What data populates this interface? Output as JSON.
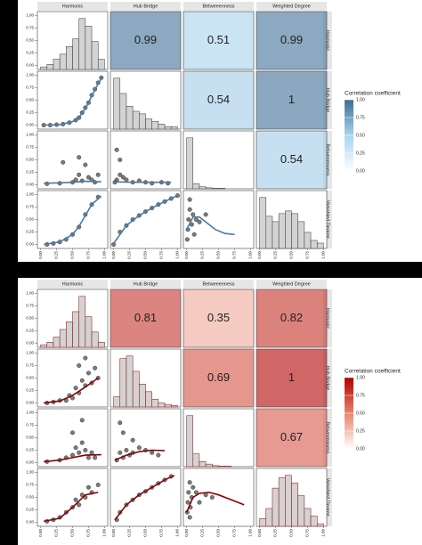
{
  "chart_data": [
    {
      "type": "pairs",
      "variables": [
        "Harmonic",
        "Hub Bridge",
        "Betweeenness",
        "Weighted Degree"
      ],
      "correlations": [
        0.99,
        0.51,
        0.99,
        0.54,
        1,
        0.54
      ],
      "histograms": [
        {
          "bins": [
            0,
            0.1,
            0.2,
            0.3,
            0.4,
            0.5,
            0.6,
            0.7,
            0.8,
            0.9,
            1
          ],
          "counts": [
            0.05,
            0.1,
            0.2,
            0.3,
            0.45,
            0.6,
            1.0,
            0.85,
            0.55,
            0.2
          ]
        },
        {
          "bins": [
            0,
            0.1,
            0.2,
            0.3,
            0.4,
            0.5,
            0.6,
            0.7,
            0.8,
            0.9,
            1
          ],
          "counts": [
            1.0,
            0.7,
            0.45,
            0.35,
            0.3,
            0.2,
            0.15,
            0.1,
            0.05,
            0.05
          ]
        },
        {
          "bins": [
            0,
            0.1,
            0.2,
            0.3,
            0.4,
            0.5,
            0.6,
            0.7,
            0.8,
            0.9,
            1
          ],
          "counts": [
            1.0,
            0.1,
            0.04,
            0.02,
            0.01,
            0.01,
            0,
            0,
            0,
            0
          ]
        },
        {
          "bins": [
            0,
            0.1,
            0.2,
            0.3,
            0.4,
            0.5,
            0.6,
            0.7,
            0.8,
            0.9,
            1
          ],
          "counts": [
            0.95,
            0.6,
            0.5,
            0.65,
            0.7,
            0.65,
            0.5,
            0.3,
            0.15,
            0.1
          ]
        }
      ],
      "scatter": [
        {
          "x": [
            0.05,
            0.15,
            0.25,
            0.35,
            0.45,
            0.55,
            0.6,
            0.65,
            0.7,
            0.75,
            0.8,
            0.85,
            0.9,
            0.95
          ],
          "y": [
            0,
            0,
            0.01,
            0.02,
            0.05,
            0.1,
            0.15,
            0.25,
            0.35,
            0.45,
            0.6,
            0.72,
            0.85,
            0.95
          ],
          "fit_x": [
            0.05,
            0.3,
            0.5,
            0.6,
            0.7,
            0.8,
            0.9,
            0.97
          ],
          "fit_y": [
            0,
            0.01,
            0.07,
            0.15,
            0.33,
            0.58,
            0.83,
            0.97
          ]
        },
        {
          "x": [
            0.1,
            0.3,
            0.5,
            0.55,
            0.6,
            0.65,
            0.7,
            0.75,
            0.8,
            0.85,
            0.35,
            0.6,
            0.9
          ],
          "y": [
            0.02,
            0.03,
            0.05,
            0.1,
            0.2,
            0.08,
            0.4,
            0.15,
            0.1,
            0.05,
            0.45,
            0.55,
            0.2
          ],
          "fit_x": [
            0.05,
            0.3,
            0.5,
            0.7,
            0.95
          ],
          "fit_y": [
            0.03,
            0.04,
            0.05,
            0.07,
            0.06
          ]
        },
        {
          "x": [
            0.02,
            0.05,
            0.1,
            0.15,
            0.2,
            0.3,
            0.4,
            0.5,
            0.6,
            0.75,
            0.85,
            0.1,
            0.05
          ],
          "y": [
            0.05,
            0.1,
            0.2,
            0.15,
            0.1,
            0.05,
            0.08,
            0.05,
            0.03,
            0.05,
            0.03,
            0.5,
            0.7
          ],
          "fit_x": [
            0.02,
            0.3,
            0.6,
            0.9
          ],
          "fit_y": [
            0.06,
            0.05,
            0.05,
            0.05
          ]
        },
        {
          "x": [
            0.1,
            0.2,
            0.3,
            0.4,
            0.5,
            0.6,
            0.7,
            0.8,
            0.9
          ],
          "y": [
            0,
            0.02,
            0.05,
            0.1,
            0.2,
            0.35,
            0.6,
            0.8,
            0.95
          ],
          "fit_x": [
            0.05,
            0.3,
            0.5,
            0.6,
            0.7,
            0.8,
            0.95
          ],
          "fit_y": [
            0,
            0.05,
            0.2,
            0.36,
            0.58,
            0.8,
            0.97
          ]
        },
        {
          "x": [
            0,
            0.1,
            0.2,
            0.3,
            0.4,
            0.5,
            0.6,
            0.7,
            0.8,
            0.9,
            1
          ],
          "y": [
            0,
            0.25,
            0.38,
            0.5,
            0.58,
            0.66,
            0.73,
            0.8,
            0.86,
            0.92,
            0.98
          ],
          "fit_x": [
            0,
            0.2,
            0.4,
            0.6,
            0.8,
            1
          ],
          "fit_y": [
            0.02,
            0.38,
            0.58,
            0.73,
            0.86,
            0.98
          ]
        },
        {
          "x": [
            0.01,
            0.02,
            0.03,
            0.05,
            0.05,
            0.08,
            0.1,
            0.12,
            0.15,
            0.2,
            0.3
          ],
          "y": [
            0.1,
            0.3,
            0.5,
            0.7,
            0.9,
            0.4,
            0.6,
            0.2,
            0.5,
            0.45,
            0.6
          ],
          "fit_x": [
            0,
            0.1,
            0.2,
            0.3,
            0.45,
            0.6,
            0.75
          ],
          "fit_y": [
            0.3,
            0.55,
            0.55,
            0.45,
            0.3,
            0.22,
            0.2
          ]
        }
      ],
      "xlim": [
        -0.05,
        1.05
      ],
      "xticks": [
        {
          "value": 0,
          "label": "0.00"
        },
        {
          "value": 0.25,
          "label": "0.25"
        },
        {
          "value": 0.5,
          "label": "0.50"
        },
        {
          "value": 0.75,
          "label": "0.75"
        },
        {
          "value": 1,
          "label": "1.00"
        }
      ],
      "ylim": [
        -0.08,
        1.08
      ],
      "yticks": [
        {
          "value": 0,
          "label": "0.00"
        },
        {
          "value": 0.25,
          "label": "0.25"
        },
        {
          "value": 0.5,
          "label": "0.50"
        },
        {
          "value": 0.75,
          "label": "0.75"
        },
        {
          "value": 1,
          "label": "1.00"
        }
      ],
      "legend": {
        "title": "Correlation coefficient",
        "colors": [
          "#ffffff",
          "#a8d4ee",
          "#3e6e96"
        ],
        "ticks": [
          {
            "value": 0,
            "label": "0.00"
          },
          {
            "value": 0.25,
            "label": "0.25"
          },
          {
            "value": 0.5,
            "label": "0.50"
          },
          {
            "value": 0.75,
            "label": "0.75"
          },
          {
            "value": 1,
            "label": "1.00"
          }
        ]
      },
      "color": "#222222",
      "fit_color": "#4a7aa5",
      "bar_fill": "#d3d3d3",
      "bar_stroke": "#333333"
    },
    {
      "type": "pairs",
      "variables": [
        "Harmonic",
        "Hub Bridge",
        "Betweeenness",
        "Weighted Degree"
      ],
      "correlations": [
        0.81,
        0.35,
        0.82,
        0.69,
        1,
        0.67
      ],
      "histograms": [
        {
          "bins": [
            0,
            0.1,
            0.2,
            0.3,
            0.4,
            0.5,
            0.6,
            0.7,
            0.8,
            0.9,
            1
          ],
          "counts": [
            0.05,
            0.1,
            0.2,
            0.35,
            0.5,
            0.7,
            1.0,
            0.6,
            0.3,
            0.1
          ]
        },
        {
          "bins": [
            0,
            0.1,
            0.2,
            0.3,
            0.4,
            0.5,
            0.6,
            0.7,
            0.8,
            0.9,
            1
          ],
          "counts": [
            0.2,
            0.95,
            1.0,
            0.7,
            0.45,
            0.3,
            0.15,
            0.08,
            0.05,
            0.03
          ]
        },
        {
          "bins": [
            0,
            0.1,
            0.2,
            0.3,
            0.4,
            0.5,
            0.6,
            0.7,
            0.8,
            0.9,
            1
          ],
          "counts": [
            1.0,
            0.25,
            0.1,
            0.05,
            0.02,
            0.01,
            0.01,
            0,
            0,
            0
          ]
        },
        {
          "bins": [
            0,
            0.1,
            0.2,
            0.3,
            0.4,
            0.5,
            0.6,
            0.7,
            0.8,
            0.9,
            1
          ],
          "counts": [
            0.15,
            0.35,
            0.75,
            0.95,
            1.0,
            0.85,
            0.6,
            0.35,
            0.2,
            0.05
          ]
        }
      ],
      "scatter": [
        {
          "x": [
            0.1,
            0.2,
            0.3,
            0.4,
            0.45,
            0.5,
            0.55,
            0.6,
            0.65,
            0.7,
            0.75,
            0.8,
            0.85,
            0.9,
            0.6,
            0.7
          ],
          "y": [
            0,
            0.02,
            0.05,
            0.05,
            0.15,
            0.1,
            0.3,
            0.2,
            0.45,
            0.35,
            0.6,
            0.4,
            0.7,
            0.5,
            0.75,
            0.9
          ],
          "fit_x": [
            0.05,
            0.3,
            0.5,
            0.7,
            0.9
          ],
          "fit_y": [
            0,
            0.04,
            0.15,
            0.32,
            0.5
          ]
        },
        {
          "x": [
            0.1,
            0.3,
            0.4,
            0.5,
            0.55,
            0.6,
            0.65,
            0.7,
            0.75,
            0.8,
            0.85,
            0.5,
            0.65
          ],
          "y": [
            0.02,
            0.05,
            0.1,
            0.15,
            0.3,
            0.2,
            0.4,
            0.25,
            0.1,
            0.2,
            0.1,
            0.6,
            0.85
          ],
          "fit_x": [
            0.05,
            0.3,
            0.5,
            0.7,
            0.95
          ],
          "fit_y": [
            0.02,
            0.05,
            0.1,
            0.15,
            0.16
          ]
        },
        {
          "x": [
            0.05,
            0.1,
            0.15,
            0.2,
            0.25,
            0.3,
            0.4,
            0.5,
            0.6,
            0.7,
            0.15,
            0.1,
            0.3
          ],
          "y": [
            0.05,
            0.2,
            0.1,
            0.25,
            0.15,
            0.2,
            0.3,
            0.25,
            0.2,
            0.15,
            0.6,
            0.8,
            0.45
          ],
          "fit_x": [
            0.02,
            0.2,
            0.4,
            0.6,
            0.8
          ],
          "fit_y": [
            0.05,
            0.15,
            0.22,
            0.25,
            0.24
          ]
        },
        {
          "x": [
            0.1,
            0.2,
            0.3,
            0.4,
            0.5,
            0.55,
            0.6,
            0.65,
            0.7,
            0.75,
            0.8,
            0.9
          ],
          "y": [
            0.02,
            0.05,
            0.1,
            0.2,
            0.3,
            0.45,
            0.35,
            0.55,
            0.5,
            0.7,
            0.6,
            0.75
          ],
          "fit_x": [
            0.05,
            0.3,
            0.5,
            0.7,
            0.9
          ],
          "fit_y": [
            0.02,
            0.08,
            0.3,
            0.55,
            0.6
          ]
        },
        {
          "x": [
            0.05,
            0.1,
            0.2,
            0.3,
            0.4,
            0.5,
            0.6,
            0.7,
            0.8,
            0.9
          ],
          "y": [
            0.05,
            0.2,
            0.35,
            0.45,
            0.55,
            0.62,
            0.7,
            0.78,
            0.85,
            0.92
          ],
          "fit_x": [
            0.02,
            0.2,
            0.4,
            0.6,
            0.8,
            0.95
          ],
          "fit_y": [
            0.05,
            0.35,
            0.55,
            0.7,
            0.85,
            0.94
          ]
        },
        {
          "x": [
            0.01,
            0.02,
            0.03,
            0.05,
            0.06,
            0.08,
            0.1,
            0.15,
            0.2,
            0.3,
            0.4,
            0.05
          ],
          "y": [
            0.2,
            0.4,
            0.6,
            0.8,
            0.3,
            0.5,
            0.7,
            0.6,
            0.4,
            0.55,
            0.5,
            0.1
          ],
          "fit_x": [
            0,
            0.1,
            0.2,
            0.35,
            0.5,
            0.7,
            0.9
          ],
          "fit_y": [
            0.2,
            0.5,
            0.58,
            0.6,
            0.55,
            0.45,
            0.35
          ]
        }
      ],
      "xlim": [
        -0.05,
        1.05
      ],
      "xticks": [
        {
          "value": 0,
          "label": "0.00"
        },
        {
          "value": 0.25,
          "label": "0.25"
        },
        {
          "value": 0.5,
          "label": "0.50"
        },
        {
          "value": 0.75,
          "label": "0.75"
        },
        {
          "value": 1,
          "label": "1.00"
        }
      ],
      "ylim": [
        -0.08,
        1.08
      ],
      "yticks": [
        {
          "value": 0,
          "label": "0.00"
        },
        {
          "value": 0.25,
          "label": "0.25"
        },
        {
          "value": 0.5,
          "label": "0.50"
        },
        {
          "value": 0.75,
          "label": "0.75"
        },
        {
          "value": 1,
          "label": "1.00"
        }
      ],
      "legend": {
        "title": "Correlation coefficient",
        "colors": [
          "#ffffff",
          "#e8836c",
          "#b00000"
        ],
        "ticks": [
          {
            "value": 0,
            "label": "0.00"
          },
          {
            "value": 0.25,
            "label": "0.25"
          },
          {
            "value": 0.5,
            "label": "0.50"
          },
          {
            "value": 0.75,
            "label": "0.75"
          },
          {
            "value": 1,
            "label": "1.00"
          }
        ]
      },
      "color": "#222222",
      "fit_color": "#8b0000",
      "bar_fill": "#d3d3d3",
      "bar_stroke": "#8b0000"
    }
  ]
}
